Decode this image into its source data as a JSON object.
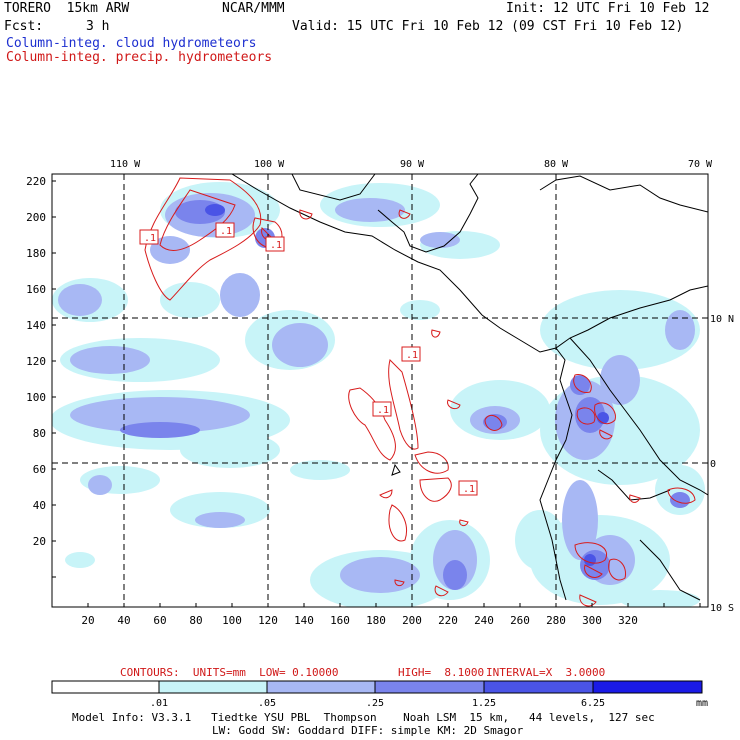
{
  "header": {
    "model": "TORERO  15km ARW",
    "org": "NCAR/MMM",
    "init": "Init: 12 UTC Fri 10 Feb 12",
    "fcst_label": "Fcst:",
    "fcst_value": "3 h",
    "valid": "Valid: 15 UTC Fri 10 Feb 12 (09 CST Fri 10 Feb 12)",
    "line1": "Column-integ. cloud hydrometeors",
    "line2": "Column-integ. precip. hydrometeors"
  },
  "colors": {
    "cloud_text": "#1d2fd0",
    "precip_text": "#d01818",
    "bins": [
      "#ffffff",
      "#c8f4f8",
      "#a8b8f4",
      "#7a84ec",
      "#4a54e6",
      "#1a1ae6"
    ]
  },
  "map": {
    "lon_labels": [
      "110 W",
      "100 W",
      "90 W",
      "80 W",
      "70 W"
    ],
    "lat_labels": [
      "10 N",
      "0",
      "10 S"
    ],
    "y_ticks": [
      "220",
      "200",
      "180",
      "160",
      "140",
      "120",
      "100",
      "80",
      "60",
      "40",
      "20"
    ],
    "x_ticks": [
      "20",
      "40",
      "60",
      "80",
      "100",
      "120",
      "140",
      "160",
      "180",
      "200",
      "220",
      "240",
      "260",
      "280",
      "300",
      "320"
    ],
    "contour_labels": [
      ".1",
      ".1",
      ".1",
      ".1",
      ".1",
      ".1"
    ]
  },
  "contours_caption": {
    "units": "CONTOURS:  UNITS=mm  LOW= 0.10000",
    "high": "HIGH=  8.1000",
    "interval": "INTERVAL=X  3.0000"
  },
  "colorbar": {
    "labels": [
      ".01",
      ".05",
      ".25",
      "1.25",
      "6.25"
    ],
    "unit": "mm"
  },
  "footer": {
    "line1": "Model Info: V3.3.1   Tiedtke YSU PBL  Thompson    Noah LSM  15 km,   44 levels,  127 sec",
    "line2": "LW: Godd SW: Goddard DIFF: simple KM: 2D Smagor"
  }
}
